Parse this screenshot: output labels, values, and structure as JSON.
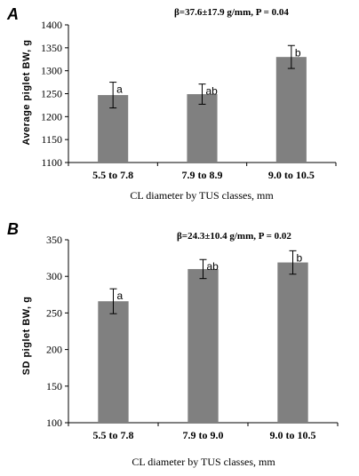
{
  "chart_data": [
    {
      "type": "bar",
      "panel": "A",
      "annotation": "β=37.6±17.9 g/mm, P = 0.04",
      "categories": [
        "5.5 to 7.8",
        "7.9 to 8.9",
        "9.0 to 10.5"
      ],
      "values": [
        1247,
        1249,
        1330
      ],
      "error": [
        28,
        22,
        25
      ],
      "letters": [
        "a",
        "ab",
        "b"
      ],
      "xlabel": "CL diameter by TUS classes, mm",
      "ylabel": "Average piglet BW, g",
      "ylim": [
        1100,
        1400
      ],
      "yticks": [
        1100,
        1150,
        1200,
        1250,
        1300,
        1350,
        1400
      ],
      "grid": false,
      "bar_color": "#808080"
    },
    {
      "type": "bar",
      "panel": "B",
      "annotation": "β=24.3±10.4 g/mm, P = 0.02",
      "categories": [
        "5.5 to 7.8",
        "7.9 to 9.0",
        "9.0 to 10.5"
      ],
      "values": [
        266,
        310,
        319
      ],
      "error": [
        17,
        13,
        16
      ],
      "letters": [
        "a",
        "ab",
        "b"
      ],
      "xlabel": "CL diameter by TUS classes, mm",
      "ylabel": "SD piglet BW, g",
      "ylim": [
        100,
        350
      ],
      "yticks": [
        100,
        150,
        200,
        250,
        300,
        350
      ],
      "grid": false,
      "bar_color": "#808080"
    }
  ]
}
